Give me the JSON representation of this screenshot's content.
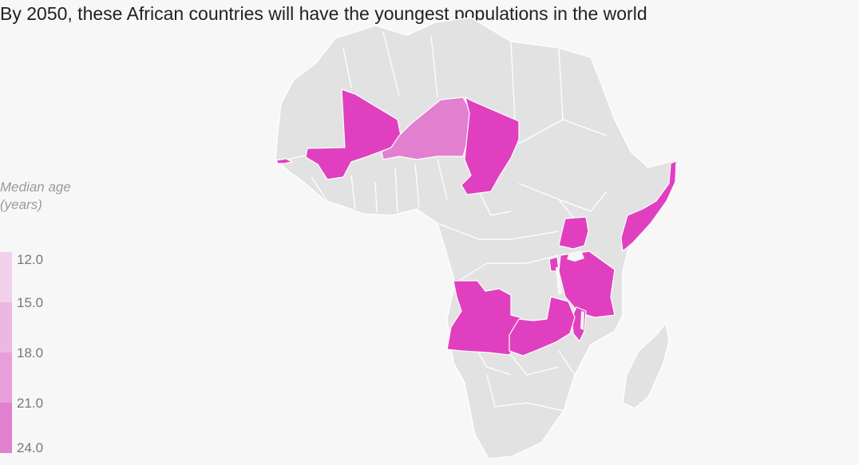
{
  "title": "By 2050, these African countries will have the youngest populations in the world",
  "legend": {
    "title_line1": "Median age",
    "title_line2": "(years)",
    "ticks": [
      "12.0",
      "15.0",
      "18.0",
      "21.0",
      "24.0"
    ],
    "colors": [
      "#f1d0ec",
      "#ecb7e3",
      "#e89fd9",
      "#e27fcf",
      "#e040c0"
    ]
  },
  "chart_data": {
    "type": "choropleth",
    "title": "By 2050, these African countries will have the youngest populations in the world",
    "value_label": "Median age (years)",
    "scale_ticks": [
      12.0,
      15.0,
      18.0,
      21.0,
      24.0
    ],
    "highlighted_countries": [
      {
        "country": "Gambia",
        "median_age_band": "21.0-24.0",
        "color": "#e040c0"
      },
      {
        "country": "Mali",
        "median_age_band": "21.0-24.0",
        "color": "#e040c0"
      },
      {
        "country": "Niger",
        "median_age_band": "18.0-21.0",
        "color": "#e27fcf"
      },
      {
        "country": "Chad",
        "median_age_band": "21.0-24.0",
        "color": "#e040c0"
      },
      {
        "country": "Somalia",
        "median_age_band": "21.0-24.0",
        "color": "#e040c0"
      },
      {
        "country": "Uganda",
        "median_age_band": "21.0-24.0",
        "color": "#e040c0"
      },
      {
        "country": "Burundi",
        "median_age_band": "21.0-24.0",
        "color": "#e040c0"
      },
      {
        "country": "Tanzania",
        "median_age_band": "21.0-24.0",
        "color": "#e040c0"
      },
      {
        "country": "Angola",
        "median_age_band": "21.0-24.0",
        "color": "#e040c0"
      },
      {
        "country": "Zambia",
        "median_age_band": "21.0-24.0",
        "color": "#e040c0"
      },
      {
        "country": "Malawi",
        "median_age_band": "21.0-24.0",
        "color": "#e040c0"
      }
    ],
    "base_color": "#e2e2e2"
  }
}
